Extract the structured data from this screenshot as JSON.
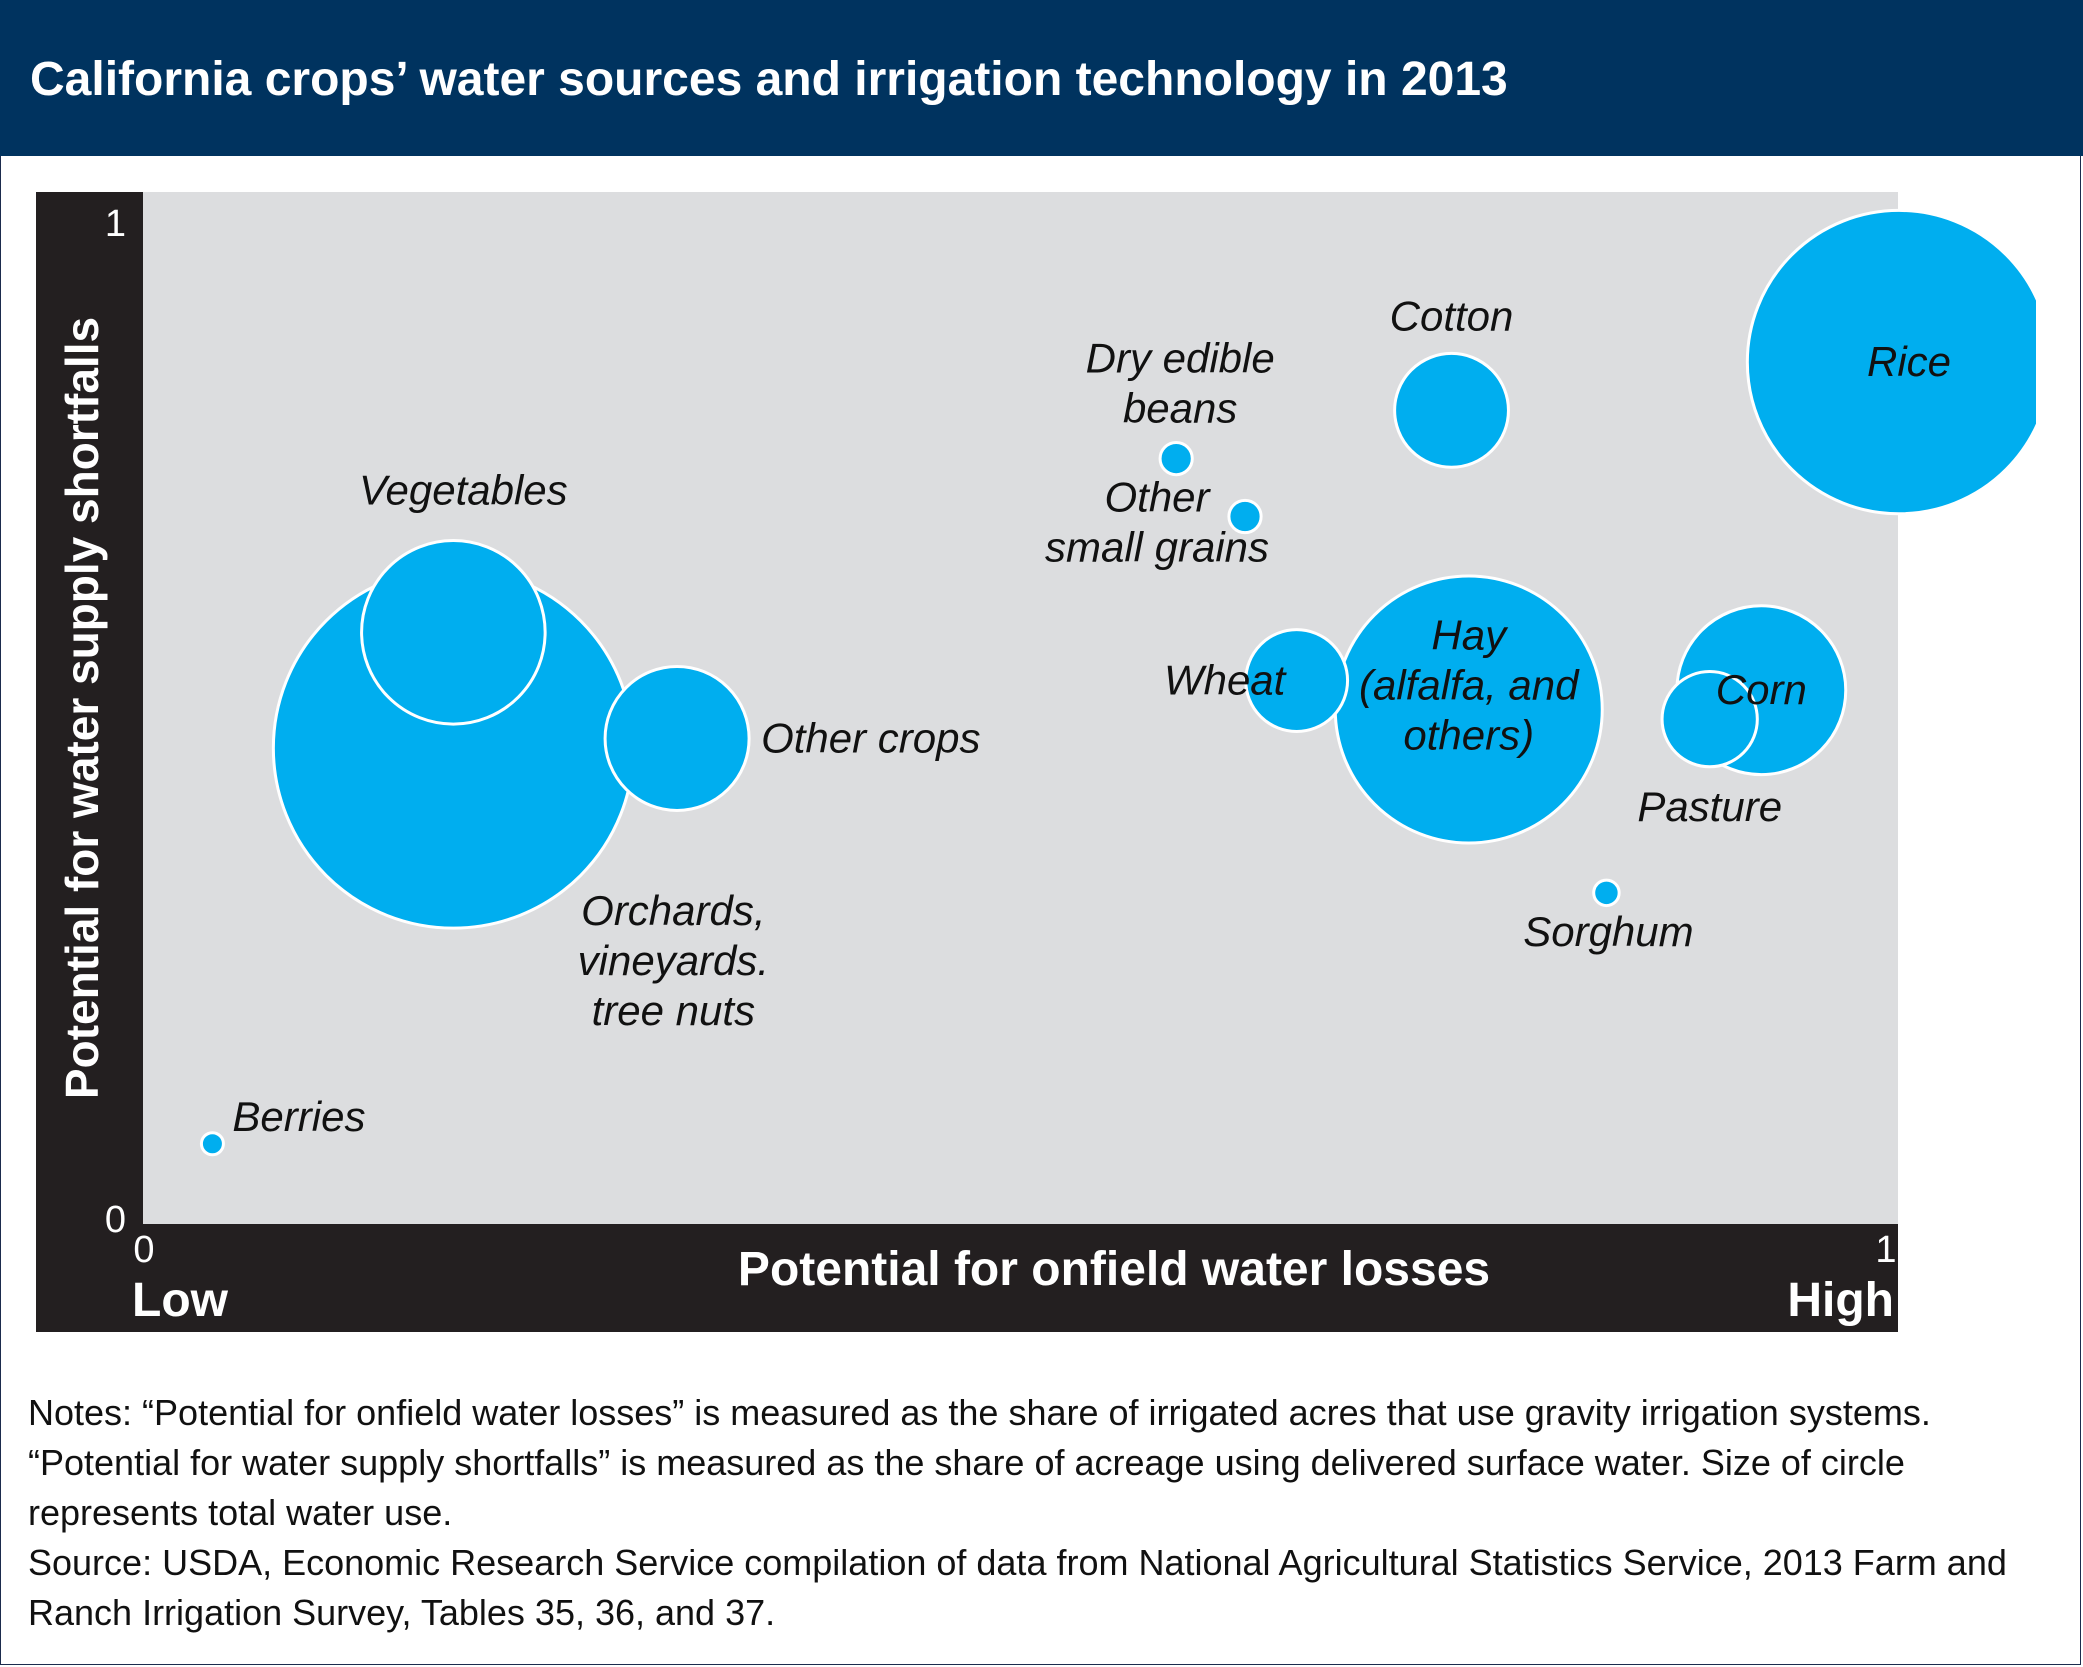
{
  "title": "California crops’ water sources and irrigation technology in 2013",
  "colors": {
    "title_bg": "#00335f",
    "axis_bg": "#231f20",
    "plot_bg": "#dcdddf",
    "bubble": "#00aeef",
    "bubble_stroke": "#ffffff"
  },
  "chart_data": {
    "type": "scatter",
    "title": "California crops’ water sources and irrigation technology in 2013",
    "xlabel": "Potential for onfield water losses",
    "ylabel": "Potential for water supply shortfalls",
    "xlim": [
      0,
      1
    ],
    "ylim": [
      0,
      1
    ],
    "x_ticks": [
      "0",
      "1"
    ],
    "y_ticks": [
      "0",
      "1"
    ],
    "x_end_labels": {
      "low": "Low",
      "high": "High"
    },
    "size_encodes": "total water use (relative)",
    "points": [
      {
        "name": "Orchards, vineyards. tree nuts",
        "x": 0.16,
        "y": 0.46,
        "size": 100
      },
      {
        "name": "Vegetables",
        "x": 0.16,
        "y": 0.58,
        "size": 26
      },
      {
        "name": "Other crops",
        "x": 0.29,
        "y": 0.47,
        "size": 16
      },
      {
        "name": "Berries",
        "x": 0.02,
        "y": 0.05,
        "size": 0.3
      },
      {
        "name": "Dry edible beans",
        "x": 0.58,
        "y": 0.76,
        "size": 0.8
      },
      {
        "name": "Other small grains",
        "x": 0.62,
        "y": 0.7,
        "size": 0.8
      },
      {
        "name": "Cotton",
        "x": 0.74,
        "y": 0.81,
        "size": 10
      },
      {
        "name": "Wheat",
        "x": 0.65,
        "y": 0.53,
        "size": 8
      },
      {
        "name": "Hay (alfalfa, and others)",
        "x": 0.75,
        "y": 0.5,
        "size": 55
      },
      {
        "name": "Pasture",
        "x": 0.89,
        "y": 0.49,
        "size": 7
      },
      {
        "name": "Corn",
        "x": 0.92,
        "y": 0.52,
        "size": 22
      },
      {
        "name": "Sorghum",
        "x": 0.83,
        "y": 0.31,
        "size": 0.5
      },
      {
        "name": "Rice",
        "x": 1.0,
        "y": 0.86,
        "size": 71
      }
    ]
  },
  "notes": {
    "note": "Notes: “Potential for onfield water losses” is measured as the share of irrigated acres that use gravity irrigation systems. “Potential for water supply shortfalls” is measured as the share of acreage using delivered surface water. Size of circle represents total water use.",
    "source": "Source: USDA, Economic Research Service compilation of data from National Agricultural Statistics Service, 2013 Farm and Ranch Irrigation Survey, Tables 35, 36, and 37."
  }
}
